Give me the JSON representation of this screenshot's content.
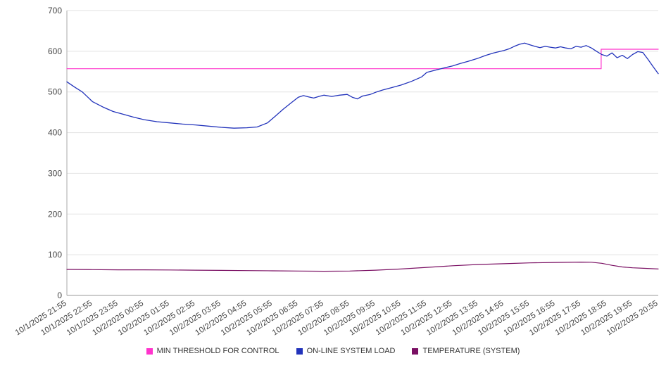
{
  "chart_data": {
    "type": "line",
    "title": "",
    "xlabel": "",
    "ylabel": "",
    "ylim": [
      0,
      700
    ],
    "yticks": [
      0,
      100,
      200,
      300,
      400,
      500,
      600,
      700
    ],
    "grid": true,
    "legend_position": "bottom",
    "x_domain": [
      0,
      23
    ],
    "x_tick_labels": [
      "10/1/2025 21:55",
      "10/1/2025 22:55",
      "10/1/2025 23:55",
      "10/2/2025 00:55",
      "10/2/2025 01:55",
      "10/2/2025 02:55",
      "10/2/2025 03:55",
      "10/2/2025 04:55",
      "10/2/2025 05:55",
      "10/2/2025 06:55",
      "10/2/2025 07:55",
      "10/2/2025 08:55",
      "10/2/2025 09:55",
      "10/2/2025 10:55",
      "10/2/2025 11:55",
      "10/2/2025 12:55",
      "10/2/2025 13:55",
      "10/2/2025 14:55",
      "10/2/2025 15:55",
      "10/2/2025 16:55",
      "10/2/2025 17:55",
      "10/2/2025 18:55",
      "10/2/2025 19:55",
      "10/2/2025 20:55"
    ],
    "series": [
      {
        "name": "MIN THRESHOLD FOR CONTROL",
        "color": "#ff33cc",
        "stroke_width": 1.2,
        "points": [
          [
            0,
            557
          ],
          [
            20.78,
            557
          ],
          [
            20.78,
            605
          ],
          [
            23,
            605
          ]
        ]
      },
      {
        "name": "ON-LINE SYSTEM LOAD",
        "color": "#2233bb",
        "stroke_width": 1.3,
        "points": [
          [
            0,
            525
          ],
          [
            0.3,
            512
          ],
          [
            0.6,
            500
          ],
          [
            1,
            476
          ],
          [
            1.4,
            463
          ],
          [
            1.8,
            452
          ],
          [
            2.2,
            445
          ],
          [
            2.6,
            438
          ],
          [
            3,
            432
          ],
          [
            3.5,
            427
          ],
          [
            4,
            424
          ],
          [
            4.5,
            421
          ],
          [
            5,
            419
          ],
          [
            5.5,
            416
          ],
          [
            6,
            413
          ],
          [
            6.5,
            411
          ],
          [
            7,
            412
          ],
          [
            7.4,
            414
          ],
          [
            7.8,
            424
          ],
          [
            8.1,
            440
          ],
          [
            8.4,
            457
          ],
          [
            8.7,
            472
          ],
          [
            9,
            487
          ],
          [
            9.2,
            491
          ],
          [
            9.4,
            488
          ],
          [
            9.6,
            485
          ],
          [
            9.8,
            489
          ],
          [
            10,
            492
          ],
          [
            10.3,
            489
          ],
          [
            10.6,
            492
          ],
          [
            10.9,
            494
          ],
          [
            11.1,
            487
          ],
          [
            11.3,
            483
          ],
          [
            11.5,
            490
          ],
          [
            11.8,
            494
          ],
          [
            12,
            499
          ],
          [
            12.3,
            505
          ],
          [
            12.6,
            510
          ],
          [
            13,
            517
          ],
          [
            13.4,
            526
          ],
          [
            13.8,
            537
          ],
          [
            14,
            548
          ],
          [
            14.3,
            553
          ],
          [
            14.6,
            558
          ],
          [
            15,
            564
          ],
          [
            15.3,
            570
          ],
          [
            15.6,
            575
          ],
          [
            16,
            583
          ],
          [
            16.3,
            590
          ],
          [
            16.6,
            596
          ],
          [
            17,
            602
          ],
          [
            17.2,
            606
          ],
          [
            17.4,
            612
          ],
          [
            17.6,
            617
          ],
          [
            17.8,
            620
          ],
          [
            18,
            616
          ],
          [
            18.2,
            612
          ],
          [
            18.4,
            609
          ],
          [
            18.6,
            612
          ],
          [
            18.8,
            610
          ],
          [
            19,
            608
          ],
          [
            19.2,
            611
          ],
          [
            19.4,
            608
          ],
          [
            19.6,
            606
          ],
          [
            19.8,
            612
          ],
          [
            20,
            610
          ],
          [
            20.2,
            614
          ],
          [
            20.4,
            608
          ],
          [
            20.6,
            600
          ],
          [
            20.8,
            592
          ],
          [
            21,
            588
          ],
          [
            21.2,
            596
          ],
          [
            21.4,
            584
          ],
          [
            21.6,
            590
          ],
          [
            21.8,
            582
          ],
          [
            22,
            592
          ],
          [
            22.2,
            599
          ],
          [
            22.4,
            597
          ],
          [
            22.6,
            580
          ],
          [
            22.8,
            562
          ],
          [
            23,
            545
          ]
        ]
      },
      {
        "name": "TEMPERATURE (SYSTEM)",
        "color": "#7a0f63",
        "stroke_width": 1.2,
        "points": [
          [
            0,
            64
          ],
          [
            1,
            63.5
          ],
          [
            2,
            63
          ],
          [
            3,
            63
          ],
          [
            4,
            62.5
          ],
          [
            5,
            62
          ],
          [
            6,
            61.5
          ],
          [
            7,
            61
          ],
          [
            8,
            60.5
          ],
          [
            9,
            60
          ],
          [
            10,
            59.5
          ],
          [
            11,
            60
          ],
          [
            12,
            62
          ],
          [
            13,
            65
          ],
          [
            14,
            69
          ],
          [
            15,
            73
          ],
          [
            16,
            76
          ],
          [
            17,
            78
          ],
          [
            18,
            80
          ],
          [
            19,
            81
          ],
          [
            20,
            82
          ],
          [
            20.4,
            81.5
          ],
          [
            20.8,
            79
          ],
          [
            21.2,
            74
          ],
          [
            21.6,
            70
          ],
          [
            22,
            68
          ],
          [
            22.5,
            66.5
          ],
          [
            23,
            65
          ]
        ]
      }
    ]
  },
  "legend": {
    "items": [
      {
        "label": "MIN THRESHOLD FOR CONTROL",
        "color": "#ff33cc"
      },
      {
        "label": "ON-LINE SYSTEM LOAD",
        "color": "#2233bb"
      },
      {
        "label": "TEMPERATURE (SYSTEM)",
        "color": "#7a0f63"
      }
    ]
  }
}
